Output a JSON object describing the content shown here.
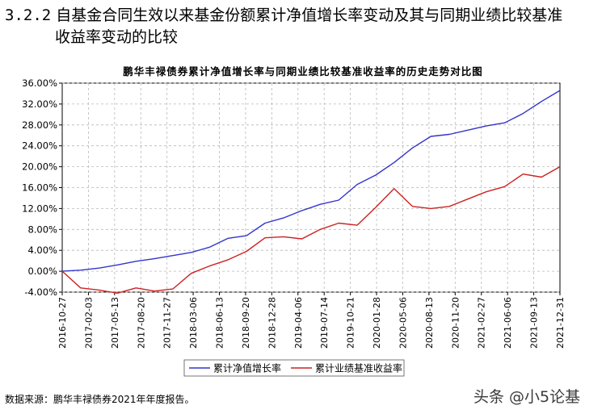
{
  "heading": {
    "section_number": "3.2.2",
    "text_line1": "自基金合同生效以来基金份额累计净值增长率变动及其与同期业绩比较基准",
    "text_line2": "收益率变动的比较"
  },
  "chart_data": {
    "type": "line",
    "title": "鹏华丰禄债券累计净值增长率与同期业绩比较基准收益率的历史走势对比图",
    "x_tick_labels": [
      "2016-10-27",
      "2017-02-03",
      "2017-05-13",
      "2017-08-20",
      "2017-11-27",
      "2018-03-06",
      "2018-06-13",
      "2018-09-20",
      "2018-12-28",
      "2019-04-06",
      "2019-07-14",
      "2019-10-21",
      "2020-01-28",
      "2020-05-06",
      "2020-08-13",
      "2020-11-20",
      "2021-02-27",
      "2021-06-06",
      "2021-09-13",
      "2021-12-31"
    ],
    "y_tick_labels": [
      "-4.00%",
      "0.00%",
      "4.00%",
      "8.00%",
      "12.00%",
      "16.00%",
      "20.00%",
      "24.00%",
      "28.00%",
      "32.00%",
      "36.00%"
    ],
    "y_ticks": [
      -4,
      0,
      4,
      8,
      12,
      16,
      20,
      24,
      28,
      32,
      36
    ],
    "ylim": [
      -4,
      36
    ],
    "grid": true,
    "legend_position": "bottom",
    "series": [
      {
        "name": "累计净值增长率",
        "color": "#3333cc",
        "values": [
          0.0,
          0.2,
          0.6,
          1.2,
          1.9,
          2.4,
          3.0,
          3.6,
          4.6,
          6.3,
          6.8,
          9.2,
          10.2,
          11.6,
          12.8,
          13.6,
          16.6,
          18.4,
          20.8,
          23.6,
          25.8,
          26.2,
          27.0,
          27.8,
          28.4,
          30.2,
          32.5,
          34.6
        ]
      },
      {
        "name": "累计业绩基准收益率",
        "color": "#cc2222",
        "values": [
          0.0,
          -3.2,
          -3.6,
          -4.2,
          -3.2,
          -3.8,
          -3.4,
          -0.4,
          1.0,
          2.2,
          3.8,
          6.4,
          6.6,
          6.2,
          8.0,
          9.2,
          8.8,
          12.2,
          15.8,
          12.4,
          12.0,
          12.4,
          13.8,
          15.2,
          16.2,
          18.6,
          18.0,
          20.0
        ]
      }
    ]
  },
  "source_note": "数据来源：鹏华丰禄债券2021年年度报告。",
  "watermark": "头条 @小5论基"
}
